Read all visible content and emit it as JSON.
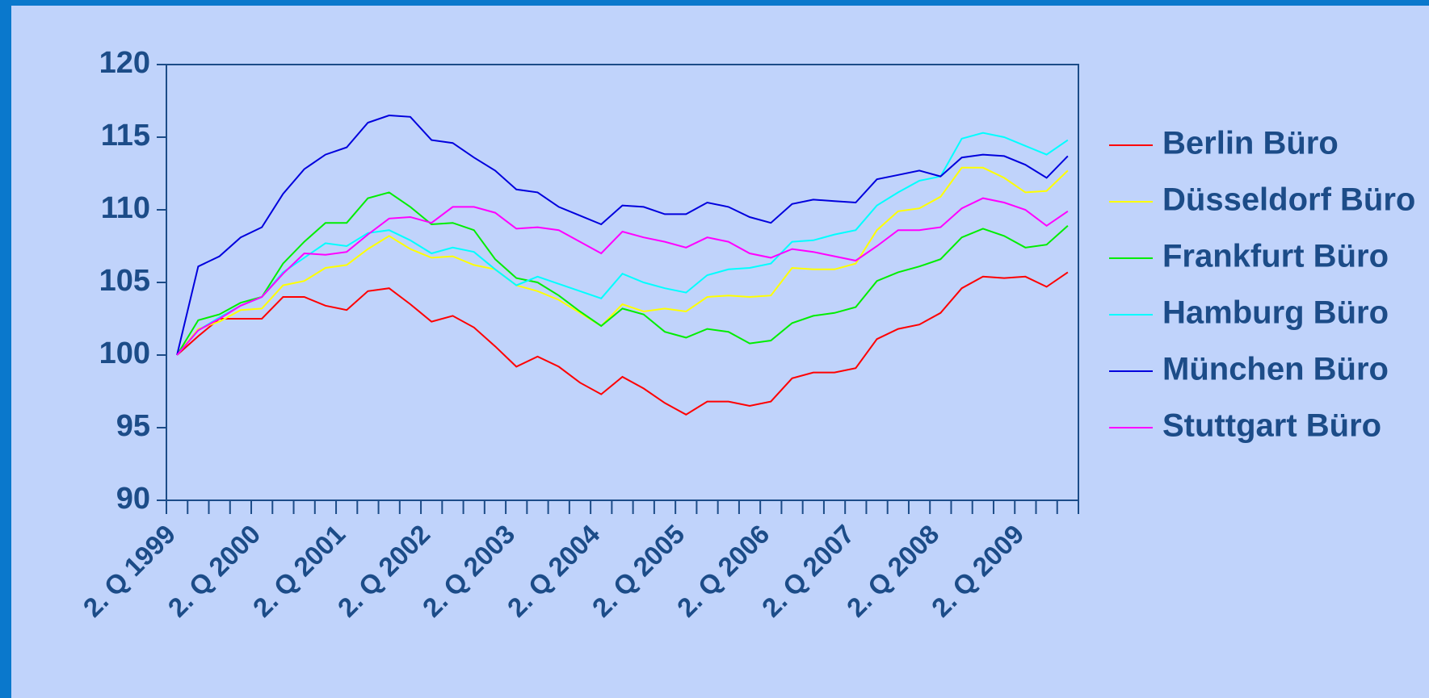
{
  "chart_data": {
    "type": "line",
    "categories": [
      "2. Q 1999",
      null,
      null,
      null,
      "2. Q 2000",
      null,
      null,
      null,
      "2. Q 2001",
      null,
      null,
      null,
      "2. Q 2002",
      null,
      null,
      null,
      "2. Q 2003",
      null,
      null,
      null,
      "2. Q 2004",
      null,
      null,
      null,
      "2. Q 2005",
      null,
      null,
      null,
      "2. Q 2006",
      null,
      null,
      null,
      "2. Q 2007",
      null,
      null,
      null,
      "2. Q 2008",
      null,
      null,
      null,
      "2. Q 2009",
      null,
      null
    ],
    "ylim": [
      90,
      120
    ],
    "yticks": [
      90,
      95,
      100,
      105,
      110,
      115,
      120
    ],
    "grid": false,
    "legend": "right",
    "series": [
      {
        "name": "Berlin Büro",
        "color": "#ff0000",
        "values": [
          100,
          101.3,
          102.5,
          102.5,
          102.5,
          104,
          104,
          103.4,
          103.1,
          104.4,
          104.6,
          103.5,
          102.3,
          102.7,
          101.9,
          100.6,
          99.2,
          99.9,
          99.2,
          98.1,
          97.3,
          98.5,
          97.7,
          96.7,
          95.9,
          96.8,
          96.8,
          96.5,
          96.8,
          98.4,
          98.8,
          98.8,
          99.1,
          101.1,
          101.8,
          102.1,
          102.9,
          104.6,
          105.4,
          105.3,
          105.4,
          104.7,
          105.7
        ]
      },
      {
        "name": "Düsseldorf Büro",
        "color": "#ffff00",
        "values": [
          100,
          101.8,
          102.3,
          103.1,
          103.2,
          104.8,
          105.1,
          106.0,
          106.2,
          107.3,
          108.2,
          107.3,
          106.7,
          106.8,
          106.2,
          105.9,
          104.8,
          104.4,
          103.8,
          102.9,
          102.0,
          103.5,
          103.0,
          103.2,
          103.0,
          104.0,
          104.1,
          104.0,
          104.1,
          106.0,
          105.9,
          105.9,
          106.3,
          108.6,
          109.9,
          110.1,
          110.9,
          112.9,
          112.9,
          112.2,
          111.2,
          111.3,
          112.7
        ]
      },
      {
        "name": "Frankfurt Büro",
        "color": "#00ee00",
        "values": [
          100,
          102.4,
          102.8,
          103.6,
          104.0,
          106.3,
          107.8,
          109.1,
          109.1,
          110.8,
          111.2,
          110.2,
          109.0,
          109.1,
          108.6,
          106.6,
          105.3,
          105.0,
          104.1,
          103.0,
          102.0,
          103.2,
          102.8,
          101.6,
          101.2,
          101.8,
          101.6,
          100.8,
          101.0,
          102.2,
          102.7,
          102.9,
          103.3,
          105.1,
          105.7,
          106.1,
          106.6,
          108.1,
          108.7,
          108.2,
          107.4,
          107.6,
          108.9
        ]
      },
      {
        "name": "Hamburg Büro",
        "color": "#00ffff",
        "values": [
          100,
          101.7,
          102.6,
          103.4,
          104.0,
          105.7,
          106.7,
          107.7,
          107.5,
          108.4,
          108.6,
          107.9,
          107.0,
          107.4,
          107.1,
          105.9,
          104.8,
          105.4,
          104.9,
          104.4,
          103.9,
          105.6,
          105.0,
          104.6,
          104.3,
          105.5,
          105.9,
          106.0,
          106.3,
          107.8,
          107.9,
          108.3,
          108.6,
          110.3,
          111.2,
          112.0,
          112.3,
          114.9,
          115.3,
          115.0,
          114.4,
          113.8,
          114.8
        ]
      },
      {
        "name": "München Büro",
        "color": "#0000dd",
        "values": [
          100,
          106.1,
          106.8,
          108.1,
          108.8,
          111.1,
          112.8,
          113.8,
          114.3,
          116.0,
          116.5,
          116.4,
          114.8,
          114.6,
          113.6,
          112.7,
          111.4,
          111.2,
          110.2,
          109.6,
          109.0,
          110.3,
          110.2,
          109.7,
          109.7,
          110.5,
          110.2,
          109.5,
          109.1,
          110.4,
          110.7,
          110.6,
          110.5,
          112.1,
          112.4,
          112.7,
          112.3,
          113.6,
          113.8,
          113.7,
          113.1,
          112.2,
          113.7
        ]
      },
      {
        "name": "Stuttgart Büro",
        "color": "#ff00ff",
        "values": [
          100,
          101.7,
          102.5,
          103.4,
          104.0,
          105.6,
          107.0,
          106.9,
          107.1,
          108.3,
          109.4,
          109.5,
          109.1,
          110.2,
          110.2,
          109.8,
          108.7,
          108.8,
          108.6,
          107.8,
          107.0,
          108.5,
          108.1,
          107.8,
          107.4,
          108.1,
          107.8,
          107.0,
          106.7,
          107.3,
          107.1,
          106.8,
          106.5,
          107.5,
          108.6,
          108.6,
          108.8,
          110.1,
          110.8,
          110.5,
          110.0,
          108.9,
          109.9
        ]
      }
    ]
  }
}
